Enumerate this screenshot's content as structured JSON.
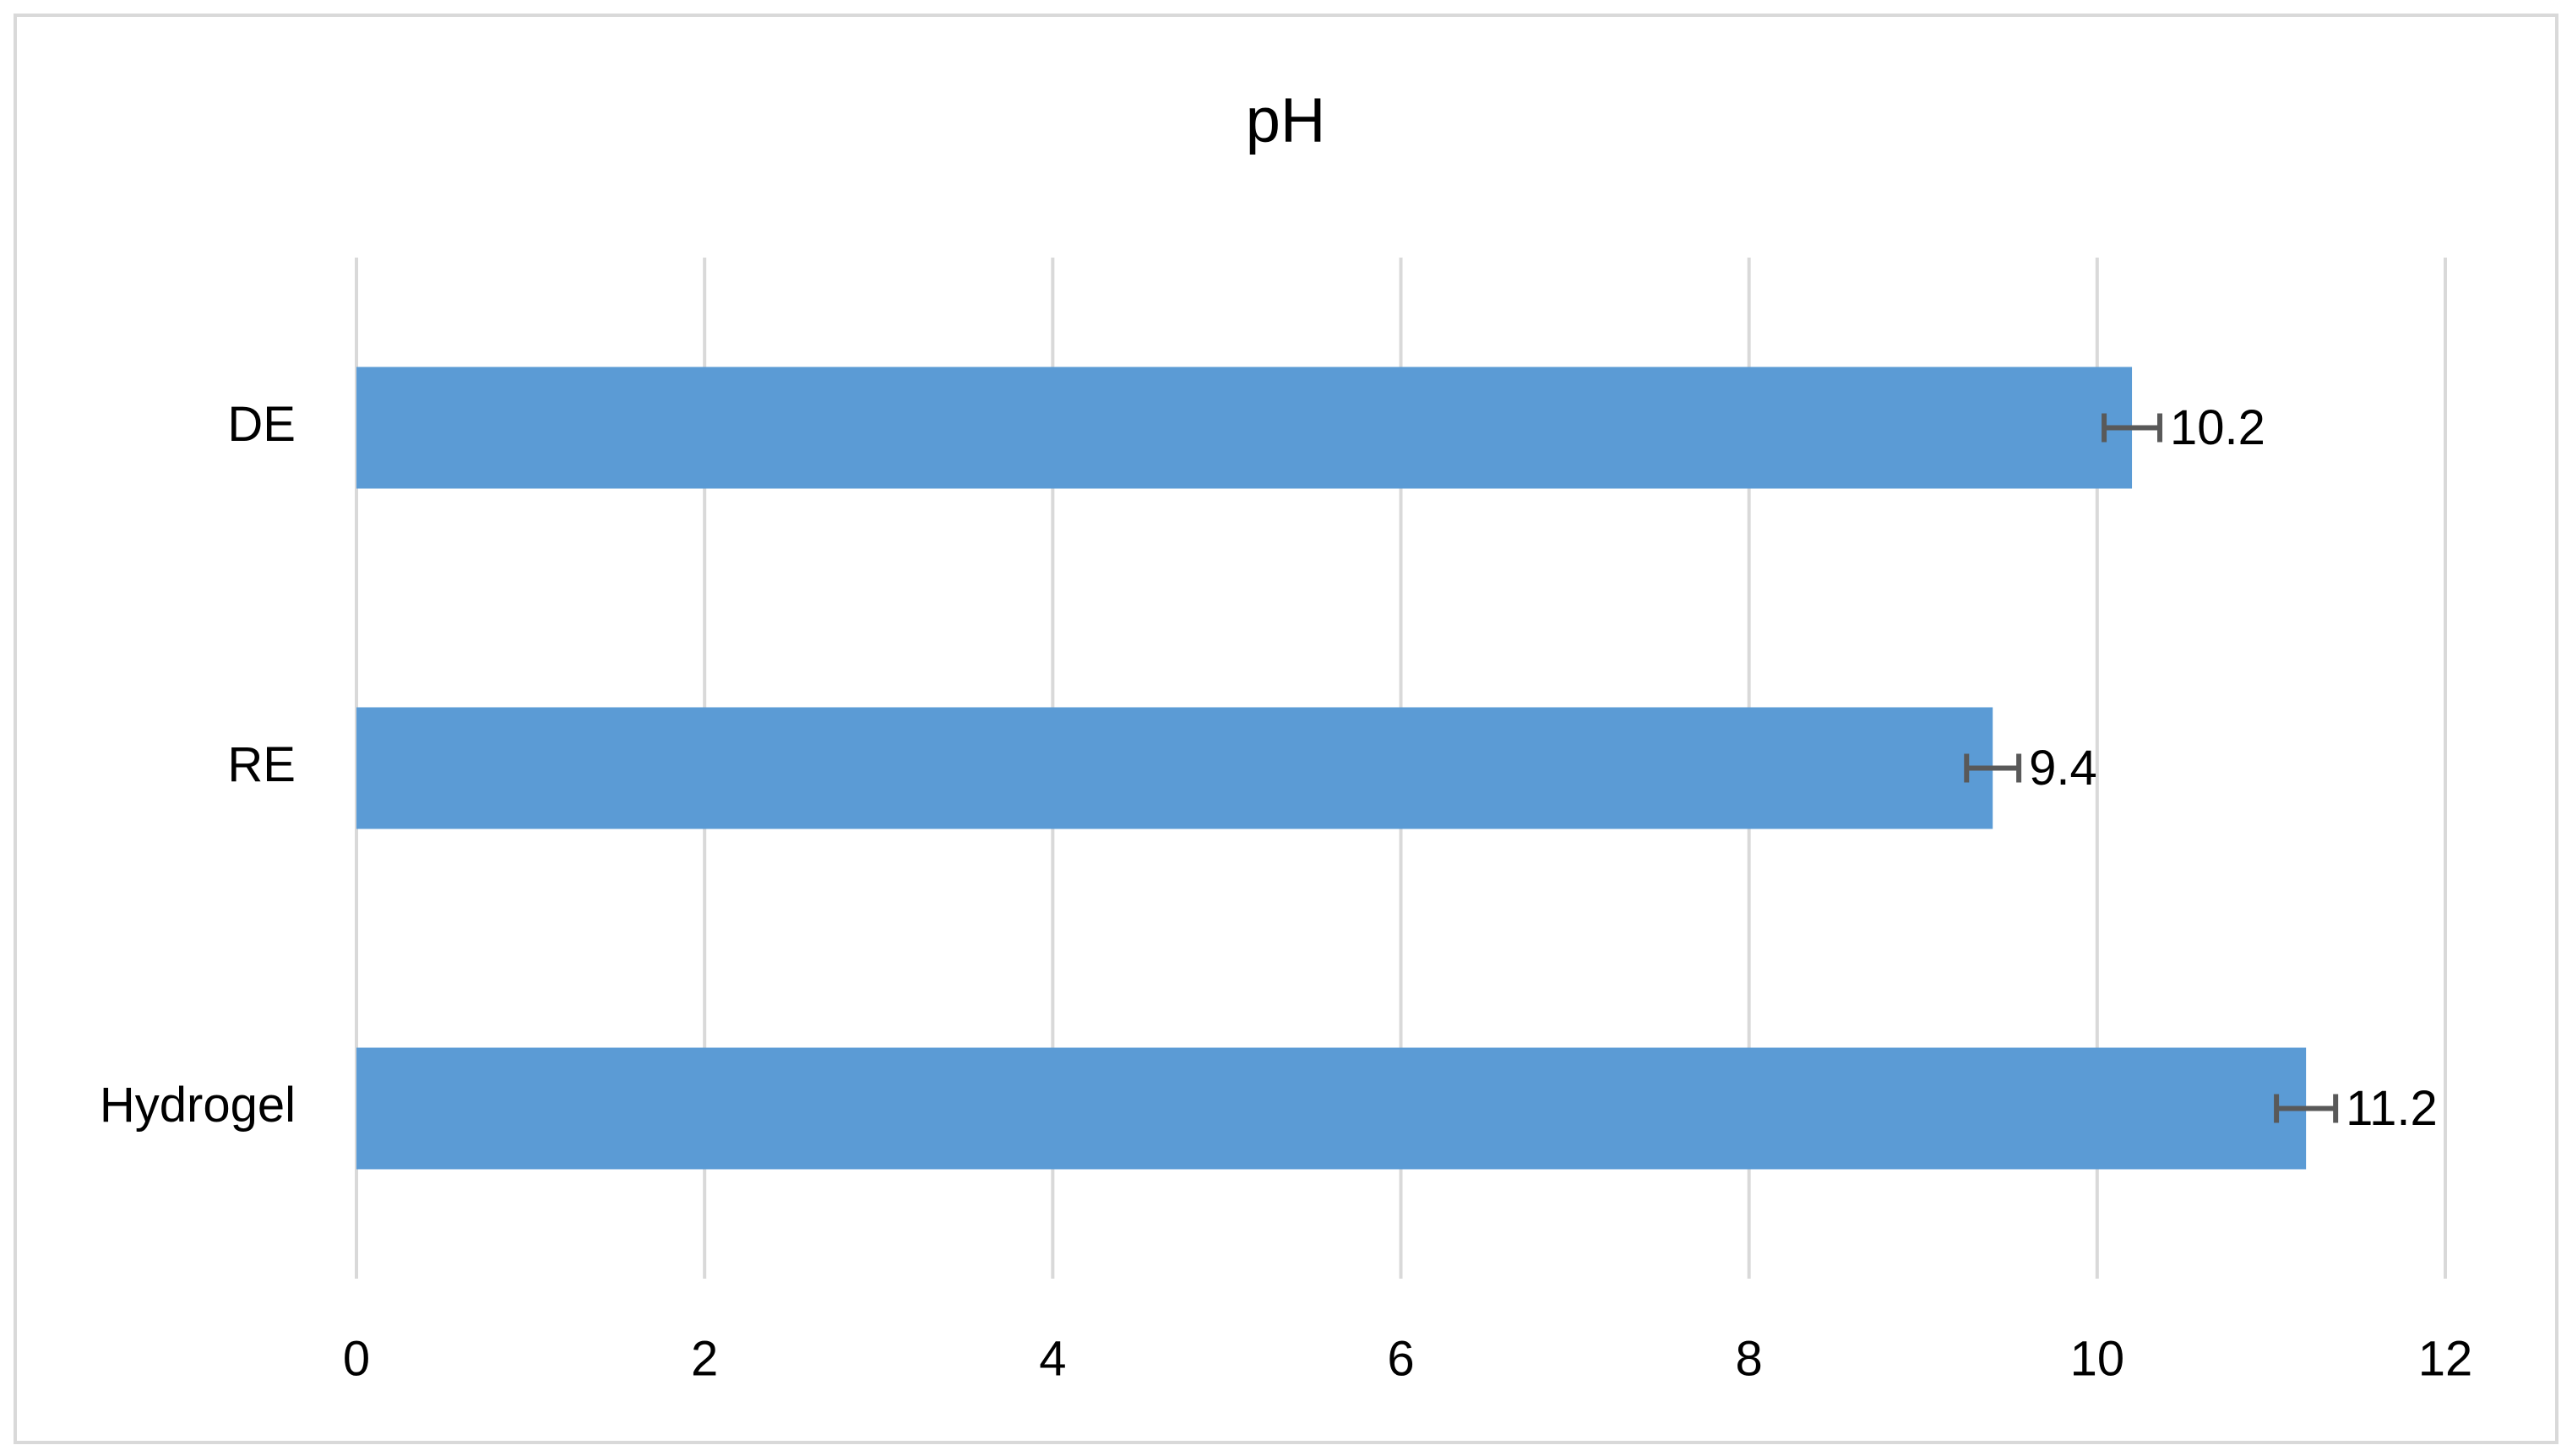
{
  "chart_data": {
    "type": "bar",
    "orientation": "horizontal",
    "title": "pH",
    "categories": [
      "DE",
      "RE",
      "Hydrogel"
    ],
    "values": [
      10.2,
      9.4,
      11.2
    ],
    "errors": [
      0.16,
      0.15,
      0.17
    ],
    "color": "#5b9bd5",
    "error_color": "#595959",
    "xlim": [
      0,
      12
    ],
    "xticks": [
      0,
      2,
      4,
      6,
      8,
      10,
      12
    ],
    "grid": true
  }
}
